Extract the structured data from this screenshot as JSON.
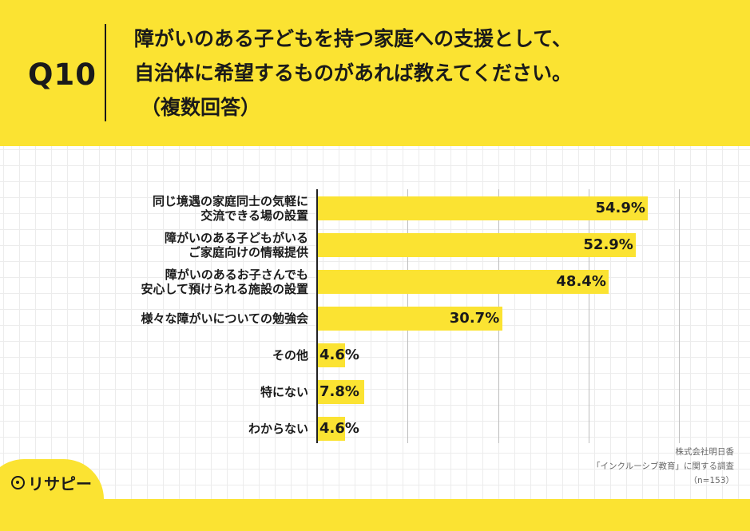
{
  "question": {
    "number": "Q10",
    "line1": "障がいのある子どもを持つ家庭への支援として、",
    "line2": "自治体に希望するものがあれば教えてください。",
    "note": "（複数回答）"
  },
  "chart_data": {
    "type": "bar",
    "orientation": "horizontal",
    "categories": [
      [
        "同じ境遇の家庭同士の気軽に",
        "交流できる場の設置"
      ],
      [
        "障がいのある子どもがいる",
        "ご家庭向けの情報提供"
      ],
      [
        "障がいのあるお子さんでも",
        "安心して預けられる施設の設置"
      ],
      [
        "様々な障がいについての勉強会"
      ],
      [
        "その他"
      ],
      [
        "特にない"
      ],
      [
        "わからない"
      ]
    ],
    "values": [
      54.9,
      52.9,
      48.4,
      30.7,
      4.6,
      7.8,
      4.6
    ],
    "value_labels": [
      "54.9%",
      "52.9%",
      "48.4%",
      "30.7%",
      "4.6%",
      "7.8%",
      "4.6%"
    ],
    "xlim": [
      0,
      60
    ],
    "grid": true,
    "bar_color": "#fbe332"
  },
  "footer": {
    "company": "株式会社明日香",
    "survey": "「インクルーシブ教育」に関する調査",
    "sample": "（n=153）"
  },
  "brand": {
    "logo_text": "リサピー",
    "logo_icon": "risapy-circle-icon"
  },
  "colors": {
    "background": "#fbe332",
    "panel": "#ffffff",
    "text": "#1a1a1a"
  }
}
